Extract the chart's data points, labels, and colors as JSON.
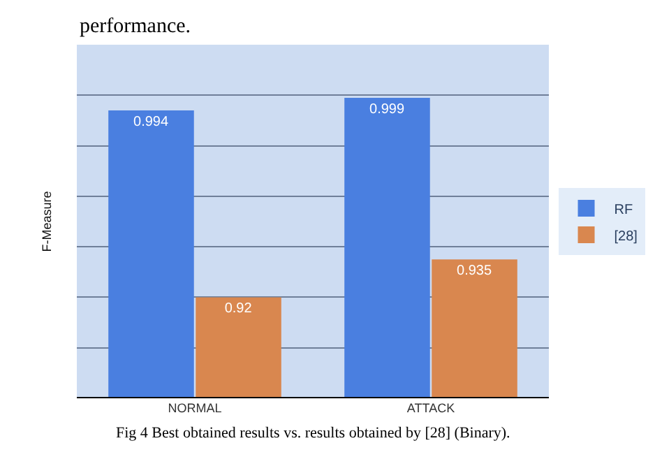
{
  "chart_data": {
    "type": "bar",
    "ylabel": "F-Measure",
    "categories": [
      "NORMAL",
      "ATTACK"
    ],
    "series": [
      {
        "name": "RF",
        "color": "#4a7fe0",
        "values": [
          0.994,
          0.999
        ]
      },
      {
        "name": "[28]",
        "color": "#d9874f",
        "values": [
          0.92,
          0.935
        ]
      }
    ],
    "ylim": [
      0.88,
      1.02
    ],
    "yticks": [
      {
        "value": 0.88,
        "label": null
      },
      {
        "value": 0.9,
        "label": null
      },
      {
        "value": 0.92,
        "label": null
      },
      {
        "value": 0.94,
        "label": null
      },
      {
        "value": 0.96,
        "label": null
      },
      {
        "value": 0.98,
        "label": null
      },
      {
        "value": 1.0,
        "label": null
      },
      {
        "value": 1.02,
        "label": null
      }
    ],
    "tick_labels": "x",
    "grid": "y",
    "legend": "right",
    "data_labels": true,
    "annotations": [
      "performance.",
      "Fig 4 Best obtained results vs. results obtained by [28] (Binary)."
    ]
  }
}
